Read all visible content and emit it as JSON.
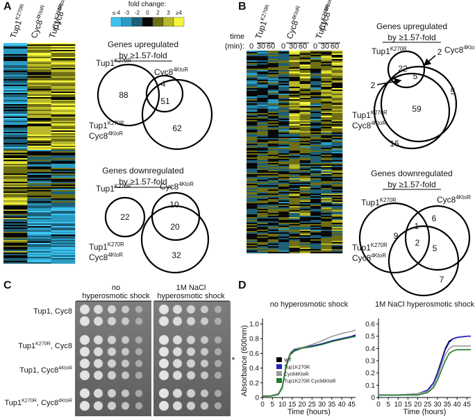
{
  "panel_a": {
    "label": "A",
    "heatmap_columns": [
      [
        [
          {
            "text": "Tup1"
          },
          {
            "text": "K270R",
            "sup": true
          }
        ]
      ],
      [
        [
          {
            "text": "Cyc8"
          },
          {
            "text": "4KtoR",
            "sup": true
          }
        ]
      ],
      [
        [
          {
            "text": "Tup1"
          },
          {
            "text": "K270R",
            "sup": true
          }
        ],
        [
          {
            "text": "Cyc8"
          },
          {
            "text": "4KtoR",
            "sup": true
          }
        ]
      ]
    ],
    "color_scale": {
      "title": "fold change:",
      "ticks": [
        "≤-4",
        "-3",
        "-2",
        "0",
        "2",
        "3",
        "≥4"
      ],
      "colors": [
        "#3cc3f0",
        "#2a9cc4",
        "#1d6078",
        "#080808",
        "#6e6e14",
        "#b8b82a",
        "#f5f53c"
      ]
    },
    "upregulated": {
      "title": "Genes upregulated",
      "subtitle": "by ≥1.57-fold",
      "set_labels": [
        [
          [
            {
              "text": "Tup1"
            },
            {
              "text": "K270R",
              "sup": true
            }
          ]
        ],
        [
          [
            {
              "text": "Cyc8"
            },
            {
              "text": "4KtoR",
              "sup": true
            }
          ]
        ],
        [
          [
            {
              "text": "Tup1"
            },
            {
              "text": "K270R",
              "sup": true
            }
          ],
          [
            {
              "text": "Cyc8"
            },
            {
              "text": "4KtoR",
              "sup": true
            }
          ]
        ]
      ],
      "counts": [
        88,
        4,
        51,
        62
      ]
    },
    "downregulated": {
      "title": "Genes downregulated",
      "subtitle": "by ≥1.57-fold",
      "set_labels": [
        [
          [
            {
              "text": "Tup1"
            },
            {
              "text": "K270R",
              "sup": true
            }
          ]
        ],
        [
          [
            {
              "text": "Cyc8"
            },
            {
              "text": "4KtoR",
              "sup": true
            }
          ]
        ],
        [
          [
            {
              "text": "Tup1"
            },
            {
              "text": "K270R",
              "sup": true
            }
          ],
          [
            {
              "text": "Cyc8"
            },
            {
              "text": "4KtoR",
              "sup": true
            }
          ]
        ]
      ],
      "counts": [
        22,
        10,
        20,
        32
      ]
    }
  },
  "panel_b": {
    "label": "B",
    "heatmap_columns": [
      [
        [
          {
            "text": "Tup1"
          },
          {
            "text": "K270R",
            "sup": true
          }
        ]
      ],
      [
        [
          {
            "text": "Cyc8"
          },
          {
            "text": "4KtoR",
            "sup": true
          }
        ]
      ],
      [
        [
          {
            "text": "Tup1"
          },
          {
            "text": "K270R",
            "sup": true
          }
        ],
        [
          {
            "text": "Cyc8"
          },
          {
            "text": "4KtoR",
            "sup": true
          }
        ]
      ]
    ],
    "time_label": [
      "time",
      "(min):"
    ],
    "time_points": [
      0,
      30,
      60,
      0,
      30,
      60,
      0,
      30,
      60
    ],
    "upregulated": {
      "title": "Genes upregulated",
      "subtitle": "by ≥1.57-fold",
      "set_labels": [
        [
          [
            {
              "text": "Tup1"
            },
            {
              "text": "K270R",
              "sup": true
            }
          ]
        ],
        [
          [
            {
              "text": "Cyc8"
            },
            {
              "text": "4KtoR",
              "sup": true
            }
          ]
        ],
        [
          [
            {
              "text": "Tup1"
            },
            {
              "text": "K270R",
              "sup": true
            }
          ],
          [
            {
              "text": "Cyc8"
            },
            {
              "text": "4KtoR",
              "sup": true
            }
          ]
        ]
      ],
      "counts": [
        22,
        2,
        5,
        59,
        5,
        2,
        16
      ]
    },
    "downregulated": {
      "title": "Genes downregulated",
      "subtitle": "by ≥1.57-fold",
      "set_labels": [
        [
          [
            {
              "text": "Tup1"
            },
            {
              "text": "K270R",
              "sup": true
            }
          ]
        ],
        [
          [
            {
              "text": "Cyc8"
            },
            {
              "text": "4KtoR",
              "sup": true
            }
          ]
        ],
        [
          [
            {
              "text": "Tup1"
            },
            {
              "text": "K270R",
              "sup": true
            }
          ],
          [
            {
              "text": "Cyc8"
            },
            {
              "text": "4KtoR",
              "sup": true
            }
          ]
        ]
      ],
      "counts": [
        9,
        6,
        1,
        2,
        5,
        7
      ]
    }
  },
  "panel_c": {
    "label": "C",
    "conditions": [
      [
        "no",
        "hyperosmotic shock"
      ],
      [
        "1M NaCl",
        "hyperosmotic shock"
      ]
    ],
    "strains": [
      [
        [
          {
            "text": "Tup1, Cyc8"
          }
        ]
      ],
      [
        [
          {
            "text": "Tup1"
          },
          {
            "text": "K270R",
            "sup": true
          },
          {
            "text": ", Cyc8"
          }
        ]
      ],
      [
        [
          {
            "text": "Tup1, Cyc8"
          },
          {
            "text": "4KtoR",
            "sup": true
          }
        ]
      ],
      [
        [
          {
            "text": "Tup1"
          },
          {
            "text": "K270R",
            "sup": true
          },
          {
            "text": ", Cyc8"
          },
          {
            "text": "4KtoR",
            "sup": true
          }
        ]
      ]
    ],
    "note": "*"
  },
  "panel_d": {
    "label": "D",
    "charts": [
      {
        "type": "line",
        "title": "no hyperosmotic shock",
        "x_label": "Time (hours)",
        "y_label": "Absorbance (600nm)",
        "legend": "lower middle",
        "x": [
          0,
          4,
          8,
          10,
          12,
          14,
          16,
          18,
          20,
          25,
          30,
          35,
          40,
          45,
          47
        ],
        "series": [
          {
            "name": "WT",
            "color": "#000000",
            "values": [
              0.02,
              0.02,
              0.05,
              0.15,
              0.45,
              0.6,
              0.65,
              0.67,
              0.68,
              0.7,
              0.73,
              0.77,
              0.8,
              0.83,
              0.85
            ]
          },
          {
            "name": "Tup1K270R",
            "color": "#2020c8",
            "values": [
              0.02,
              0.02,
              0.05,
              0.14,
              0.44,
              0.6,
              0.64,
              0.66,
              0.68,
              0.7,
              0.73,
              0.77,
              0.8,
              0.83,
              0.84
            ]
          },
          {
            "name": "Cyc84KtoR",
            "color": "#9a9a9a",
            "values": [
              0.02,
              0.02,
              0.05,
              0.16,
              0.46,
              0.61,
              0.66,
              0.67,
              0.68,
              0.72,
              0.77,
              0.83,
              0.87,
              0.9,
              0.92
            ]
          },
          {
            "name": "Tup1K270R Cyc84KtoR",
            "color": "#1e7a2a",
            "values": [
              0.02,
              0.02,
              0.04,
              0.13,
              0.42,
              0.58,
              0.63,
              0.65,
              0.67,
              0.69,
              0.72,
              0.76,
              0.79,
              0.82,
              0.83
            ]
          }
        ],
        "xlim": [
          0,
          47
        ],
        "ylim": [
          0,
          1
        ],
        "xticks": [
          0,
          5,
          10,
          15,
          20,
          25,
          30,
          35,
          40,
          45
        ],
        "yticks": [
          0,
          0.2,
          0.4,
          0.6,
          0.8,
          {
            "value": 1,
            "label": "1.0"
          }
        ]
      },
      {
        "type": "line",
        "title": "1M NaCl hyperosmotic shock",
        "x_label": "Time (hours)",
        "x": [
          0,
          10,
          20,
          25,
          28,
          30,
          32,
          34,
          36,
          38,
          40,
          45,
          47
        ],
        "series": [
          {
            "color": "#000000",
            "values": [
              0.02,
              0.02,
              0.03,
              0.06,
              0.12,
              0.2,
              0.3,
              0.4,
              0.46,
              0.48,
              0.49,
              0.5,
              0.5
            ]
          },
          {
            "color": "#2020c8",
            "values": [
              0.02,
              0.02,
              0.03,
              0.06,
              0.12,
              0.19,
              0.29,
              0.39,
              0.45,
              0.48,
              0.49,
              0.5,
              0.5
            ]
          },
          {
            "color": "#9a9a9a",
            "values": [
              0.02,
              0.02,
              0.03,
              0.05,
              0.1,
              0.17,
              0.26,
              0.35,
              0.4,
              0.42,
              0.42,
              0.42,
              0.42
            ]
          },
          {
            "color": "#1e7a2a",
            "values": [
              0.02,
              0.02,
              0.02,
              0.04,
              0.08,
              0.14,
              0.22,
              0.3,
              0.36,
              0.38,
              0.39,
              0.39,
              0.39
            ]
          }
        ],
        "xlim": [
          0,
          47
        ],
        "ylim": [
          0,
          0.6
        ],
        "xticks": [
          0,
          5,
          10,
          15,
          20,
          25,
          30,
          35,
          40,
          45
        ],
        "yticks": [
          0,
          0.1,
          0.2,
          0.3,
          0.4,
          0.5,
          0.6
        ]
      }
    ]
  }
}
